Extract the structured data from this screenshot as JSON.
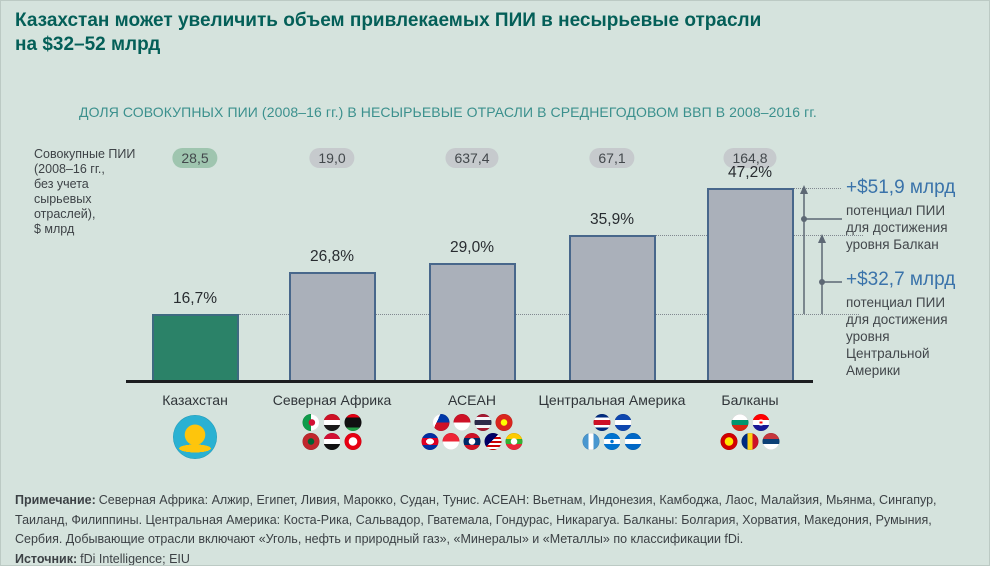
{
  "title": "Казахстан может увеличить объем привлекаемых ПИИ в несырьевые отрасли\nна $32–52 млрд",
  "y_axis_label": "Совокупные ПИИ\n(2008–16 гг.,\nбез учета\nсырьевых\nотраслей),\n$ млрд",
  "chart_data": {
    "type": "bar",
    "title": "ДОЛЯ СОВОКУПНЫХ ПИИ (2008–16 гг.) В НЕСЫРЬЕВЫЕ ОТРАСЛИ В СРЕДНЕГОДОВОМ ВВП В 2008–2016 гг.",
    "ylabel": "Совокупные ПИИ (2008–16 гг., без учета сырьевых отраслей), $ млрд",
    "categories": [
      "Казахстан",
      "Северная Африка",
      "АСЕАН",
      "Центральная Америка",
      "Балканы"
    ],
    "ids": [
      "kazakhstan",
      "north-africa",
      "asean",
      "central-america",
      "balkans"
    ],
    "values": [
      16.7,
      26.8,
      29.0,
      35.9,
      47.2
    ],
    "value_labels": [
      "16,7%",
      "26,8%",
      "29,0%",
      "35,9%",
      "47,2%"
    ],
    "cumulative_fdi_bln": [
      28.5,
      19.0,
      637.4,
      67.1,
      164.8
    ],
    "cumulative_fdi_labels": [
      "28,5",
      "19,0",
      "637,4",
      "67,1",
      "164,8"
    ],
    "bar_fills": [
      "#2b8268",
      "#aab0ba",
      "#aab0ba",
      "#aab0ba",
      "#aab0ba"
    ],
    "bar_borders": [
      "#3e6a80",
      "#48678b",
      "#48678b",
      "#48678b",
      "#48678b"
    ],
    "pill_fills": [
      "#9fc5af",
      "#c6cacd",
      "#c6cacd",
      "#c6cacd",
      "#c6cacd"
    ],
    "ylim": [
      0,
      50
    ],
    "grid": "off",
    "annotations": [
      {
        "value": "+$51,9 млрд",
        "text": "потенциал ПИИ\nдля достижения\nуровня Балкан"
      },
      {
        "value": "+$32,7 млрд",
        "text": "потенциал ПИИ\nдля достижения\nуровня\nЦентральной\nАмерики"
      }
    ]
  },
  "flags": [
    {
      "category": "Казахстан",
      "large": true,
      "rows": [
        [
          {
            "name": "kazakhstan-flag-icon",
            "css": "radial-gradient(16px 4px at 50% 76%, #fec50c 99%, rgba(0,0,0,0) 100%), radial-gradient(circle at 50% 45%, #fec50c 0 10px, rgba(0,0,0,0) 10.5px), linear-gradient(0deg, #2ab1d2, #2ab1d2)"
          }
        ]
      ]
    },
    {
      "category": "Северная Африка",
      "large": false,
      "rows": [
        [
          {
            "name": "algeria-flag-icon",
            "css": "radial-gradient(circle at 55% 50%, #d21034 0 3px, rgba(0,0,0,0) 3.5px), linear-gradient(90deg, #0f9b4a 50%, #ffffff 50%)"
          },
          {
            "name": "egypt-flag-icon",
            "css": "linear-gradient(180deg, #ce1126 34%, #ffffff 34% 66%, #1a1a1a 66%)"
          },
          {
            "name": "libya-flag-icon",
            "css": "linear-gradient(180deg, #e70013 22%, #111111 22% 78%, #239e46 78%)"
          }
        ],
        [
          {
            "name": "morocco-flag-icon",
            "css": "radial-gradient(circle, #006233 0 3px, #c1272d 3.5px)"
          },
          {
            "name": "sudan-flag-icon",
            "css": "linear-gradient(180deg, #d21034 34%, #ffffff 34% 66%, #111111 66%)"
          },
          {
            "name": "tunisia-flag-icon",
            "css": "radial-gradient(circle, #ffffff 0 4px, #e70013 4.5px)"
          }
        ]
      ]
    },
    {
      "category": "АСЕАН",
      "large": false,
      "rows": [
        [
          {
            "name": "philippines-flag-icon",
            "css": "linear-gradient(115deg, #ffffff 32%, rgba(0,0,0,0) 32%), linear-gradient(180deg, #0038a8 50%, #ce1126 50%)"
          },
          {
            "name": "indonesia-flag-icon",
            "css": "linear-gradient(180deg, #ce1126 50%, #ffffff 50%)"
          },
          {
            "name": "thailand-flag-icon",
            "css": "linear-gradient(180deg, #a51931 0 18%, #f4f5f8 18% 36%, #2d2a4a 36% 64%, #f4f5f8 64% 82%, #a51931 82%)"
          },
          {
            "name": "vietnam-flag-icon",
            "css": "radial-gradient(circle, #ffff00 0 3px, #da251d 3.5px)"
          }
        ],
        [
          {
            "name": "cambodia-flag-icon",
            "css": "radial-gradient(4px 3px at 50% 50%, #ffffff 99%, rgba(0,0,0,0) 100%), linear-gradient(180deg, #032ea1 28%, #e00025 28% 72%, #032ea1 72%)"
          },
          {
            "name": "singapore-flag-icon",
            "css": "linear-gradient(180deg, #ee2536 50%, #ffffff 50%)"
          },
          {
            "name": "laos-flag-icon",
            "css": "radial-gradient(circle, #ffffff 0 3px, rgba(0,0,0,0) 3.5px), linear-gradient(180deg, #ce1126 28%, #002868 28% 72%, #ce1126 72%)"
          },
          {
            "name": "malaysia-flag-icon",
            "css": "linear-gradient(135deg, #010066 45%, rgba(0,0,0,0) 45%), repeating-linear-gradient(180deg, #cc0001 0 2px, #ffffff 2px 4px)"
          },
          {
            "name": "myanmar-flag-icon",
            "css": "radial-gradient(circle, #ffffff 0 3px, rgba(0,0,0,0) 3.5px), linear-gradient(180deg, #fecb00 34%, #34b233 34% 66%, #ea2839 66%)"
          }
        ]
      ]
    },
    {
      "category": "Центральная Америка",
      "large": false,
      "rows": [
        [
          {
            "name": "costa-rica-flag-icon",
            "css": "linear-gradient(180deg, #002b7f 0 20%, #ffffff 20% 36%, #ce1126 36% 64%, #ffffff 64% 80%, #002b7f 80%)"
          },
          {
            "name": "el-salvador-flag-icon",
            "css": "linear-gradient(180deg, #0f47af 34%, #ffffff 34% 66%, #0f47af 66%)"
          }
        ],
        [
          {
            "name": "guatemala-flag-icon",
            "css": "linear-gradient(90deg, #4997d0 34%, #ffffff 34% 66%, #4997d0 66%)"
          },
          {
            "name": "honduras-flag-icon",
            "css": "radial-gradient(circle, #0073cf 0 1.5px, rgba(0,0,0,0) 2px), linear-gradient(180deg, #0073cf 34%, #ffffff 34% 66%, #0073cf 66%)"
          },
          {
            "name": "nicaragua-flag-icon",
            "css": "linear-gradient(180deg, #0067c6 34%, #ffffff 34% 66%, #0067c6 66%)"
          }
        ]
      ]
    },
    {
      "category": "Балканы",
      "large": false,
      "rows": [
        [
          {
            "name": "bulgaria-flag-icon",
            "css": "linear-gradient(180deg, #ffffff 34%, #00966e 34% 66%, #d62612 66%)"
          },
          {
            "name": "croatia-flag-icon",
            "css": "radial-gradient(4px 3px at 50% 50%, #ff0000 40%, #ffffff 41% 99%, rgba(0,0,0,0) 100%), linear-gradient(180deg, #ff0000 34%, #ffffff 34% 66%, #171796 66%)"
          }
        ],
        [
          {
            "name": "macedonia-flag-icon",
            "css": "radial-gradient(circle, #ffe600 0 4px, #d20000 4.5px)"
          },
          {
            "name": "romania-flag-icon",
            "css": "linear-gradient(90deg, #002b7f 34%, #fcd116 34% 66%, #ce1126 66%)"
          },
          {
            "name": "serbia-flag-icon",
            "css": "linear-gradient(180deg, #c6363c 34%, #0c4076 34% 66%, #ffffff 66%)"
          }
        ]
      ]
    }
  ],
  "footnote": {
    "label": "Примечание:",
    "text": "Северная Африка: Алжир, Египет, Ливия, Марокко, Судан, Тунис. АСЕАН: Вьетнам, Индонезия, Камбоджа, Лаос, Малайзия, Мьянма, Сингапур, Таиланд, Филиппины. Центральная Америка: Коста-Рика, Сальвадор, Гватемала, Гондурас, Никарагуа. Балканы: Болгария, Хорватия, Македония, Румыния, Сербия. Добывающие отрасли включают «Уголь, нефть и природный газ», «Минералы» и «Металлы» по классификации fDi."
  },
  "source": {
    "label": "Источник:",
    "text": "fDi Intelligence; EIU"
  },
  "colors": {
    "background": "#d5e3dd",
    "title": "#045f58",
    "subtitle": "#3b908d",
    "annotation_value": "#3a73aa",
    "axis": "#1c1e20",
    "kazakhstan_bar": "#2b8268",
    "region_bar": "#aab0ba"
  }
}
